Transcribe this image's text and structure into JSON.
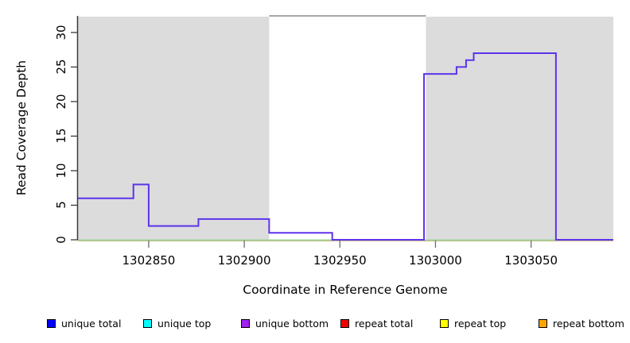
{
  "chart_data": {
    "type": "line",
    "subtype": "step-coverage",
    "title": "",
    "xlabel": "Coordinate in Reference Genome",
    "ylabel": "Read Coverage Depth",
    "xlim": [
      1302813,
      1303093
    ],
    "ylim": [
      0,
      32.4
    ],
    "xticks": [
      1302850,
      1302900,
      1302950,
      1303000,
      1303050
    ],
    "yticks": [
      0,
      5,
      10,
      15,
      20,
      25,
      30
    ],
    "grid": false,
    "legend_position": "bottom",
    "series": [
      {
        "name": "coverage-step-line",
        "color": "#5D33EB",
        "steps": [
          {
            "start": 1302813,
            "end": 1302842,
            "depth": 6
          },
          {
            "start": 1302842,
            "end": 1302850,
            "depth": 8
          },
          {
            "start": 1302850,
            "end": 1302876,
            "depth": 2
          },
          {
            "start": 1302876,
            "end": 1302913,
            "depth": 3
          },
          {
            "start": 1302913,
            "end": 1302946,
            "depth": 1
          },
          {
            "start": 1302946,
            "end": 1302994,
            "depth": 0
          },
          {
            "start": 1302994,
            "end": 1303011,
            "depth": 24
          },
          {
            "start": 1303011,
            "end": 1303016,
            "depth": 25
          },
          {
            "start": 1303016,
            "end": 1303020,
            "depth": 26
          },
          {
            "start": 1303020,
            "end": 1303063,
            "depth": 27
          },
          {
            "start": 1303063,
            "end": 1303093,
            "depth": 0
          }
        ]
      },
      {
        "name": "zero-baseline-green",
        "color": "#8FCE8F",
        "steps": [
          {
            "start": 1302813,
            "end": 1303093,
            "depth": 0
          }
        ]
      },
      {
        "name": "zero-baseline-orange",
        "color": "#F0B080",
        "steps": [
          {
            "start": 1302813,
            "end": 1303093,
            "depth": 0
          }
        ]
      }
    ],
    "shaded_regions": [
      {
        "start": 1302813,
        "end": 1302913,
        "color": "#DCDCDC"
      },
      {
        "start": 1302995,
        "end": 1303093,
        "color": "#DCDCDC"
      }
    ],
    "legend": {
      "items": [
        {
          "label": "unique total",
          "color": "#0000FF"
        },
        {
          "label": "unique top",
          "color": "#00FFFF"
        },
        {
          "label": "unique bottom",
          "color": "#A020F0"
        },
        {
          "label": "repeat total",
          "color": "#EE0000"
        },
        {
          "label": "repeat top",
          "color": "#FFFF00"
        },
        {
          "label": "repeat bottom",
          "color": "#FFA500"
        }
      ]
    }
  },
  "figure": {
    "x_axis_title": "Coordinate in Reference Genome",
    "y_axis_title": "Read Coverage Depth"
  }
}
